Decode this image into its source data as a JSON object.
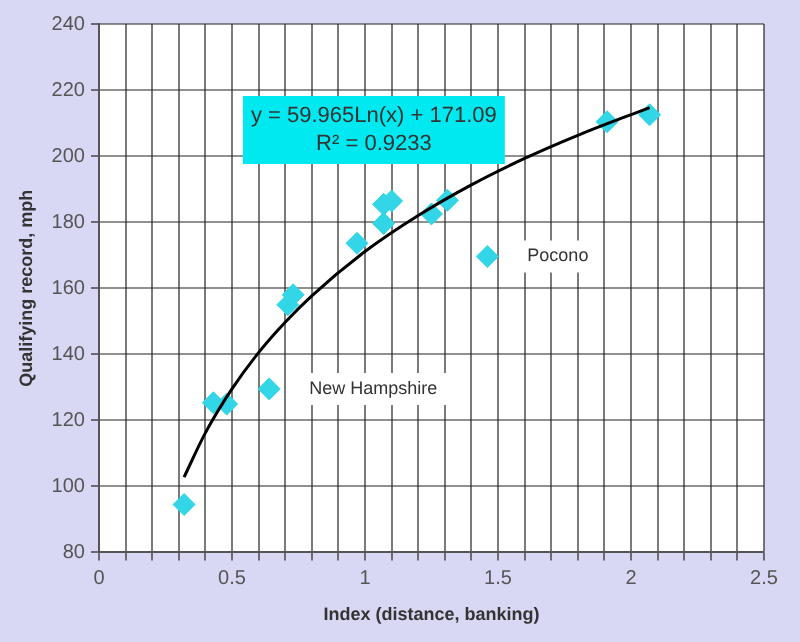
{
  "chart_data": {
    "type": "scatter",
    "xlabel": "Index (distance, banking)",
    "ylabel": "Qualifying record, mph",
    "xlim": [
      0,
      2.5
    ],
    "ylim": [
      80,
      240
    ],
    "xticks": [
      0,
      {
        "value": 0.1,
        "label": null
      },
      {
        "value": 0.2,
        "label": null
      },
      {
        "value": 0.3,
        "label": null
      },
      {
        "value": 0.4,
        "label": null
      },
      0.5,
      {
        "value": 0.6,
        "label": null
      },
      {
        "value": 0.7,
        "label": null
      },
      {
        "value": 0.8,
        "label": null
      },
      {
        "value": 0.9,
        "label": null
      },
      1,
      {
        "value": 1.1,
        "label": null
      },
      {
        "value": 1.2,
        "label": null
      },
      {
        "value": 1.3,
        "label": null
      },
      {
        "value": 1.4,
        "label": null
      },
      1.5,
      {
        "value": 1.6,
        "label": null
      },
      {
        "value": 1.7,
        "label": null
      },
      {
        "value": 1.8,
        "label": null
      },
      {
        "value": 1.9,
        "label": null
      },
      2,
      {
        "value": 2.1,
        "label": null
      },
      {
        "value": 2.2,
        "label": null
      },
      {
        "value": 2.3,
        "label": null
      },
      {
        "value": 2.4,
        "label": null
      },
      2.5
    ],
    "yticks": [
      80,
      100,
      120,
      140,
      160,
      180,
      200,
      220,
      240
    ],
    "grid": true,
    "legend": false,
    "series": [
      {
        "color": "#33d6e6",
        "marker": "diamond",
        "x": [
          0.32,
          0.43,
          0.48,
          0.64,
          0.71,
          0.73,
          0.97,
          1.07,
          1.07,
          1.1,
          1.25,
          1.31,
          1.46,
          1.91,
          2.07
        ],
        "values": [
          94.5,
          125.3,
          124.9,
          129.5,
          155,
          158,
          173.6,
          179.6,
          185.4,
          186.4,
          182.5,
          186.6,
          169.6,
          210.4,
          212.5
        ]
      },
      {
        "type": "line",
        "color": "#000000",
        "x": [
          0.32,
          0.4,
          0.5,
          0.6,
          0.7,
          0.8,
          1.0,
          1.2,
          1.4,
          1.6,
          1.8,
          2.07
        ],
        "values": [
          102.8,
          116.2,
          129.5,
          140.5,
          149.7,
          157.7,
          171.1,
          182,
          191.3,
          199.3,
          206.3,
          214.7
        ]
      }
    ],
    "annotations": [
      "y = 59.965Ln(x) + 171.09",
      "R² = 0.9233",
      {
        "text": "New Hampshire",
        "x": 0.64,
        "y": 129.5
      },
      {
        "text": "Pocono",
        "x": 1.46,
        "y": 169.6
      }
    ]
  }
}
